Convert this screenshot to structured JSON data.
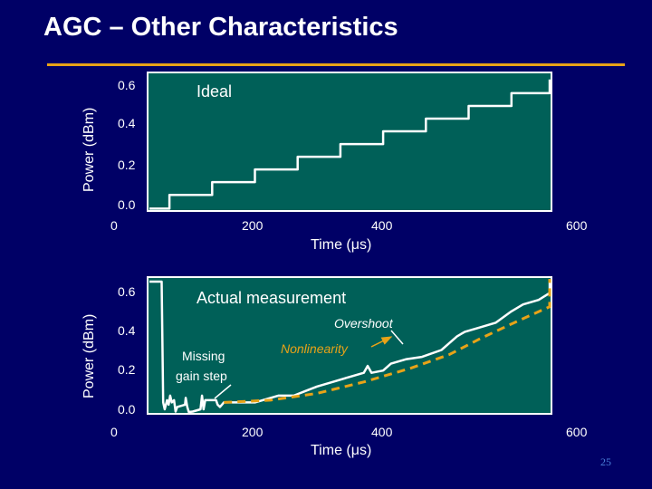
{
  "slide": {
    "title": "AGC – Other Characteristics",
    "page_number": "25",
    "accent_color": "#e8a317",
    "background_color": "#000066",
    "plot_color": "#006058"
  },
  "chart_data": [
    {
      "type": "line",
      "title": "Ideal",
      "xlabel": "Time (μs)",
      "ylabel": "Power (dBm)",
      "xlim": [
        0,
        600
      ],
      "ylim": [
        0.0,
        0.6
      ],
      "xticks": [
        "0",
        "200",
        "400",
        "600"
      ],
      "yticks": [
        "0.0",
        "0.2",
        "0.4",
        "0.6"
      ],
      "series": [
        {
          "style": "staircase",
          "x": [
            20,
            70,
            70,
            125,
            125,
            180,
            180,
            235,
            235,
            290,
            290,
            345,
            345,
            400,
            400,
            455,
            455,
            510,
            510,
            565,
            565,
            620
          ],
          "y": [
            0.01,
            0.01,
            0.07,
            0.07,
            0.125,
            0.125,
            0.18,
            0.18,
            0.235,
            0.235,
            0.29,
            0.29,
            0.345,
            0.345,
            0.4,
            0.4,
            0.455,
            0.455,
            0.51,
            0.51,
            0.57,
            0.57
          ]
        }
      ],
      "annotations": []
    },
    {
      "type": "line",
      "title": "Actual measurement",
      "xlabel": "Time (μs)",
      "ylabel": "Power (dBm)",
      "xlim": [
        0,
        600
      ],
      "ylim": [
        0.0,
        0.6
      ],
      "xticks": [
        "0",
        "200",
        "400",
        "600"
      ],
      "yticks": [
        "0.0",
        "0.2",
        "0.4",
        "0.6"
      ],
      "series": [
        {
          "name": "measured",
          "color": "#ffffff",
          "x": [
            20,
            60,
            62,
            64,
            67,
            69,
            71,
            73,
            76,
            78,
            80,
            90,
            91,
            93,
            95,
            100,
            110,
            112,
            114,
            116,
            130,
            132,
            135,
            140,
            180,
            200,
            210,
            230,
            245,
            260,
            280,
            300,
            310,
            320,
            325,
            330,
            345,
            355,
            375,
            395,
            420,
            440,
            450,
            470,
            490,
            510,
            525,
            545,
            560,
            575,
            590,
            600,
            620
          ],
          "y": [
            0.58,
            0.58,
            0.05,
            0.02,
            0.06,
            0.04,
            0.08,
            0.05,
            0.06,
            0.01,
            0.03,
            0.04,
            0.07,
            0.03,
            0.0,
            0.01,
            0.02,
            0.08,
            0.02,
            0.06,
            0.06,
            0.04,
            0.03,
            0.05,
            0.05,
            0.07,
            0.08,
            0.08,
            0.1,
            0.12,
            0.14,
            0.16,
            0.17,
            0.18,
            0.21,
            0.18,
            0.19,
            0.22,
            0.24,
            0.25,
            0.28,
            0.34,
            0.36,
            0.38,
            0.4,
            0.45,
            0.48,
            0.5,
            0.53,
            0.55,
            0.57,
            0.58,
            0.6
          ]
        },
        {
          "name": "trend",
          "color": "#e8a317",
          "style": "dashed",
          "x": [
            140,
            200,
            260,
            320,
            380,
            430,
            470,
            520,
            560,
            600,
            625
          ],
          "y": [
            0.05,
            0.06,
            0.09,
            0.14,
            0.2,
            0.26,
            0.33,
            0.41,
            0.47,
            0.55,
            0.6
          ]
        }
      ],
      "annotations": [
        "Overshoot",
        "Nonlinearity",
        "Missing",
        "gain step"
      ]
    }
  ]
}
